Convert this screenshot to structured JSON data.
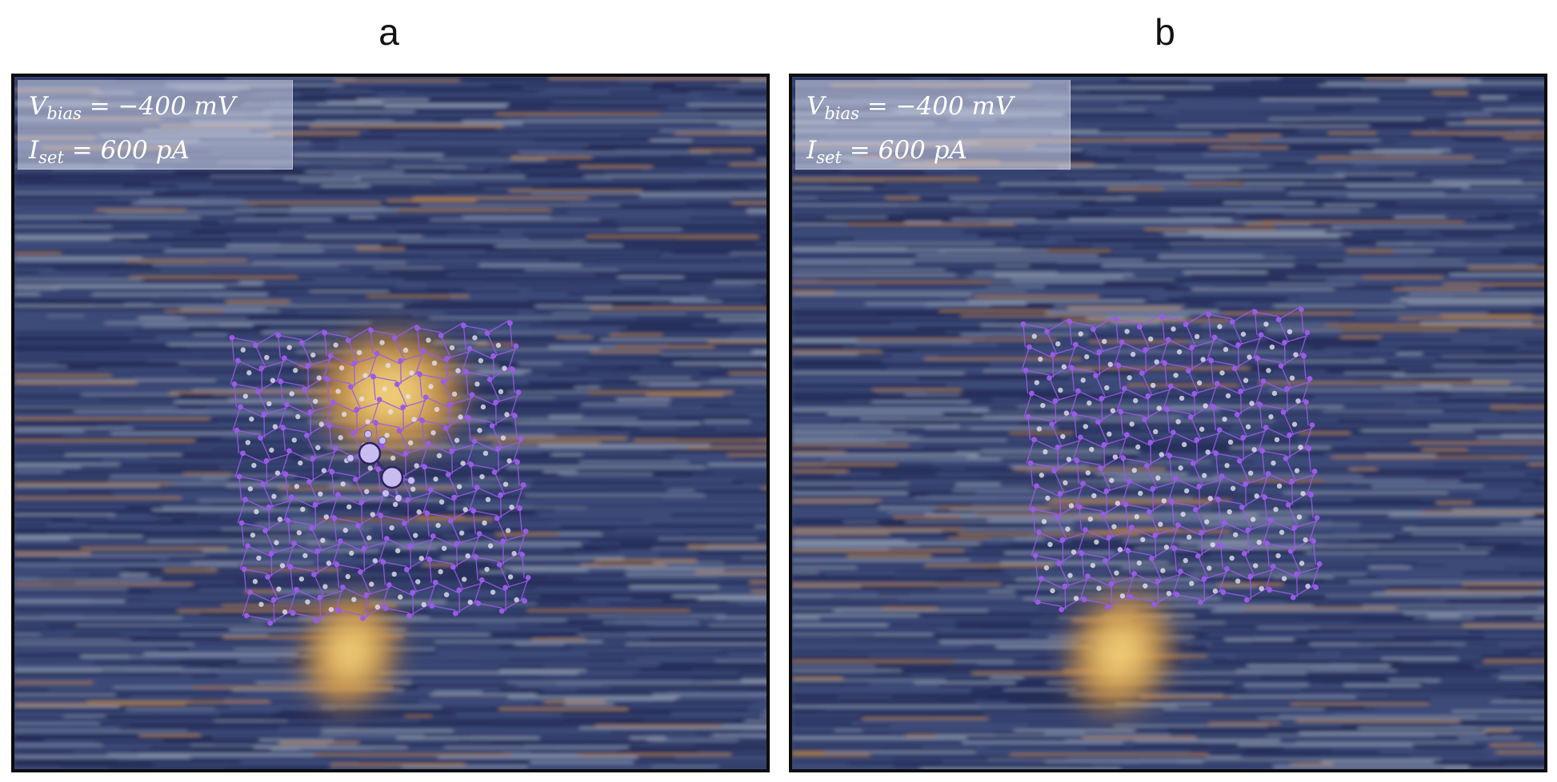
{
  "panels": [
    {
      "label": "a",
      "params": {
        "v_symbol": "V",
        "v_sub": "bias",
        "v_value": "= −400 mV",
        "i_symbol": "I",
        "i_sub": "set",
        "i_value": "= 600 pA"
      },
      "image": {
        "adsorbate_molecule": true,
        "bright_features": [
          "center-adsorbate-glow",
          "lower-defect-streak"
        ]
      }
    },
    {
      "label": "b",
      "params": {
        "v_symbol": "V",
        "v_sub": "bias",
        "v_value": "= −400 mV",
        "i_symbol": "I",
        "i_sub": "set",
        "i_value": "= 600 pA"
      },
      "image": {
        "adsorbate_molecule": false,
        "bright_features": [
          "lower-defect-streak"
        ]
      }
    }
  ],
  "colors": {
    "background_dark": "#222a55",
    "background_mid": "#3c4a78",
    "streak_light": "#8792a8",
    "bright_yellow": "#f6d47a",
    "bright_orange": "#c98a3a",
    "lattice_purple": "#9a5be8",
    "lattice_white": "#e4e2ee",
    "molecule_lavender": "#c9bdf0"
  }
}
